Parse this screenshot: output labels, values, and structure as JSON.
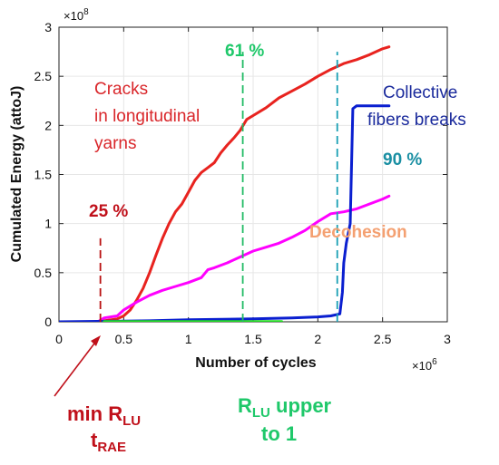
{
  "chart_data": {
    "type": "line",
    "xlabel": "Number of cycles",
    "ylabel": "Cumulated Energy (attoJ)",
    "x_multiplier_label": "×10",
    "x_multiplier_exp": "6",
    "y_multiplier_label": "×10",
    "y_multiplier_exp": "8",
    "xlim": [
      0,
      3
    ],
    "ylim": [
      0,
      3
    ],
    "x_ticks": [
      "0",
      "0.5",
      "1",
      "1.5",
      "2",
      "2.5",
      "3"
    ],
    "y_ticks": [
      "0",
      "0.5",
      "1",
      "1.5",
      "2",
      "2.5",
      "3"
    ],
    "grid": true,
    "series": [
      {
        "color": "#e8231f",
        "x": [
          0,
          0.3,
          0.35,
          0.45,
          0.5,
          0.55,
          0.6,
          0.65,
          0.7,
          0.75,
          0.8,
          0.85,
          0.9,
          0.95,
          1.0,
          1.05,
          1.1,
          1.15,
          1.2,
          1.25,
          1.3,
          1.35,
          1.4,
          1.45,
          1.5,
          1.6,
          1.7,
          1.8,
          1.9,
          2.0,
          2.1,
          2.2,
          2.3,
          2.4,
          2.5,
          2.55
        ],
        "y": [
          0,
          0.0,
          0.01,
          0.03,
          0.06,
          0.12,
          0.22,
          0.34,
          0.5,
          0.68,
          0.85,
          1.0,
          1.12,
          1.2,
          1.32,
          1.44,
          1.52,
          1.57,
          1.62,
          1.72,
          1.8,
          1.87,
          1.95,
          2.06,
          2.1,
          2.18,
          2.28,
          2.35,
          2.42,
          2.5,
          2.57,
          2.63,
          2.67,
          2.72,
          2.78,
          2.8
        ]
      },
      {
        "color": "#ff00ff",
        "x": [
          0,
          0.3,
          0.35,
          0.45,
          0.5,
          0.6,
          0.7,
          0.8,
          0.9,
          1.0,
          1.1,
          1.15,
          1.2,
          1.3,
          1.4,
          1.5,
          1.6,
          1.7,
          1.8,
          1.9,
          2.0,
          2.1,
          2.2,
          2.3,
          2.4,
          2.5,
          2.55
        ],
        "y": [
          0,
          0.0,
          0.04,
          0.06,
          0.12,
          0.2,
          0.27,
          0.32,
          0.36,
          0.4,
          0.45,
          0.53,
          0.55,
          0.6,
          0.66,
          0.72,
          0.76,
          0.8,
          0.86,
          0.93,
          1.02,
          1.1,
          1.12,
          1.15,
          1.2,
          1.25,
          1.28
        ]
      },
      {
        "color": "#0a1fd0",
        "x": [
          0,
          0.7,
          1.0,
          1.5,
          1.8,
          2.0,
          2.1,
          2.17,
          2.19,
          2.2,
          2.22,
          2.25,
          2.27,
          2.3,
          2.4,
          2.55
        ],
        "y": [
          0,
          0.01,
          0.02,
          0.03,
          0.04,
          0.05,
          0.06,
          0.08,
          0.3,
          0.6,
          0.8,
          1.0,
          2.17,
          2.2,
          2.2,
          2.2
        ]
      },
      {
        "color": "#22dd22",
        "x": [
          0.35,
          1.72
        ],
        "y": [
          0.0,
          0.0
        ]
      }
    ],
    "vertical_markers": [
      {
        "x": 0.32,
        "color": "#b81010",
        "y_from": 0.0,
        "y_to": 0.85
      },
      {
        "x": 1.42,
        "color": "#22bb66",
        "y_from": 0.0,
        "y_to": 2.75
      },
      {
        "x": 2.15,
        "color": "#1aa0b5",
        "y_from": 0.0,
        "y_to": 2.75
      }
    ],
    "annotations": {
      "cracks": [
        "Cracks",
        "in longitudinal",
        "yarns"
      ],
      "collective": [
        "Collective",
        "fibers breaks"
      ],
      "decohesion": "Decohesion",
      "pct_25": "25 %",
      "pct_61": "61 %",
      "pct_90": "90 %"
    },
    "bottom_labels": {
      "min_r": "min R",
      "min_r_sub": "LU",
      "t_rae": "t",
      "t_rae_sub": "RAE",
      "r_lu": "R",
      "r_lu_sub": "LU",
      "r_lu_rest": " upper",
      "r_lu_line2": "to 1"
    },
    "colors": {
      "red_text": "#d9262a",
      "blue_text": "#1a2a9c",
      "orange_text": "#f4a071",
      "green_text": "#1fc86a",
      "teal_text": "#1a8fa3",
      "dark_red_text": "#c0101a",
      "arrow": "#c0101a"
    }
  }
}
